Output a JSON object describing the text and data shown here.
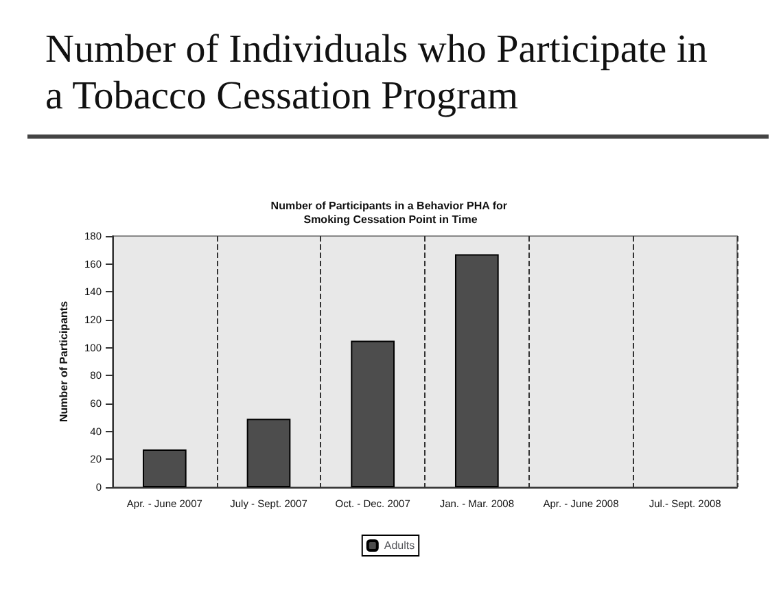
{
  "chart_data": {
    "type": "bar",
    "title": "Number of Individuals who Participate in a Tobacco Cessation Program",
    "subtitle": "Number of Participants in a Behavior PHA for Smoking Cessation Point in Time",
    "ylabel": "Number of Participants",
    "categories": [
      "Apr. - June 2007",
      "July - Sept. 2007",
      "Oct. - Dec. 2007",
      "Jan. - Mar. 2008",
      "Apr. - June 2008",
      "Jul.- Sept. 2008"
    ],
    "series": [
      {
        "name": "Adults",
        "color": "#4d4d4d",
        "values": [
          27,
          49,
          105,
          167,
          null,
          null
        ]
      }
    ],
    "ylim": [
      0,
      180
    ],
    "yticks": [
      0,
      20,
      40,
      60,
      80,
      100,
      120,
      140,
      160,
      180
    ],
    "grid": "x",
    "legend": "bottom"
  }
}
